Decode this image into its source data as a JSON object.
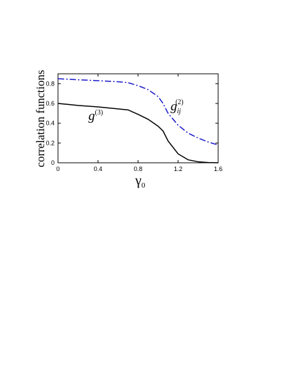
{
  "chart_data": {
    "type": "line",
    "ylabel": "correlation functions",
    "xlabel": {
      "base": "γ",
      "sub": "0"
    },
    "xlim": [
      0,
      1.6
    ],
    "xticks": [
      0,
      0.4,
      0.8,
      1.2,
      1.6
    ],
    "ylim": [
      0,
      0.9
    ],
    "yticks": [
      0,
      0.2,
      0.4,
      0.6,
      0.8
    ],
    "series": [
      {
        "label": {
          "base": "g",
          "sub": "ij",
          "sup": "(2)"
        },
        "color": "#1a1acc",
        "dash": "dashdot",
        "x": [
          0,
          0.2,
          0.4,
          0.6,
          0.7,
          0.8,
          0.9,
          1.0,
          1.05,
          1.1,
          1.2,
          1.3,
          1.4,
          1.5,
          1.6
        ],
        "values": [
          0.85,
          0.84,
          0.83,
          0.82,
          0.81,
          0.78,
          0.74,
          0.67,
          0.6,
          0.5,
          0.38,
          0.3,
          0.25,
          0.21,
          0.18
        ]
      },
      {
        "label": {
          "base": "g",
          "sup": "(3)"
        },
        "color": "#000000",
        "dash": "solid",
        "x": [
          0,
          0.1,
          0.2,
          0.4,
          0.6,
          0.7,
          0.8,
          0.9,
          1.0,
          1.05,
          1.1,
          1.2,
          1.3,
          1.4,
          1.5,
          1.6
        ],
        "values": [
          0.6,
          0.59,
          0.58,
          0.565,
          0.545,
          0.535,
          0.49,
          0.44,
          0.37,
          0.32,
          0.22,
          0.09,
          0.03,
          0.01,
          0.003,
          0
        ]
      }
    ]
  }
}
